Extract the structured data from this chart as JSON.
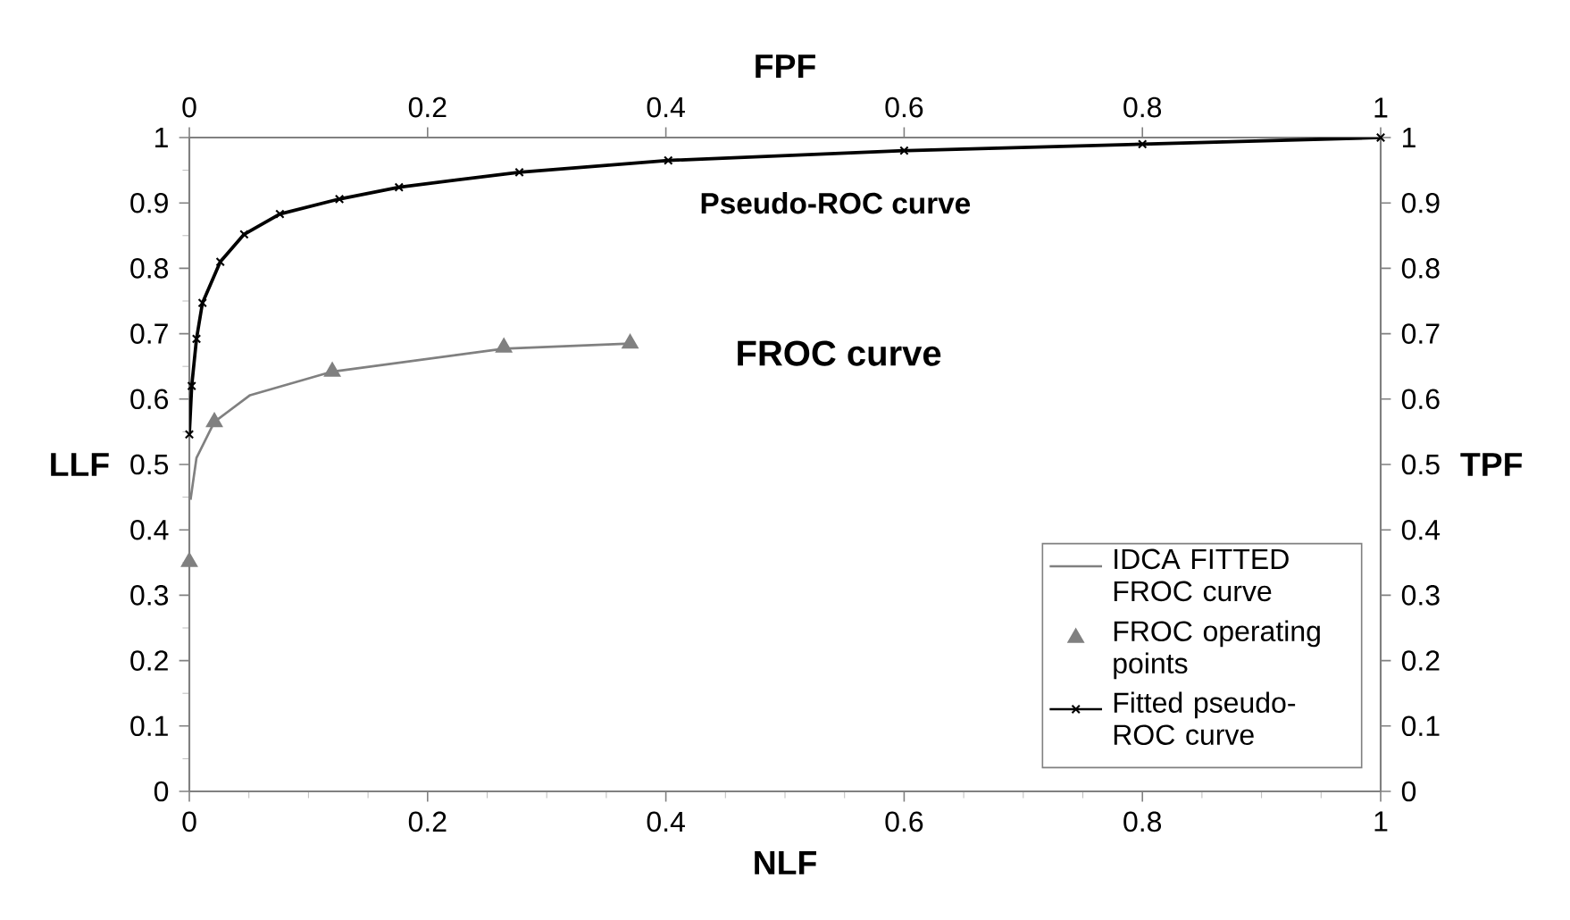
{
  "chart_data": {
    "type": "line",
    "xlabel": "NLF",
    "ylabel": "LLF",
    "x2label": "FPF",
    "y2label": "TPF",
    "xlim": [
      0,
      1
    ],
    "xticks": [
      0,
      0.2,
      0.4,
      0.6,
      0.8,
      1
    ],
    "ylim": [
      0,
      1
    ],
    "yticks": [
      0,
      0.1,
      0.2,
      0.3,
      0.4,
      0.5,
      0.6,
      0.7,
      0.8,
      0.9,
      1
    ],
    "x2lim": [
      0,
      1
    ],
    "x2ticks": [
      0,
      0.2,
      0.4,
      0.6,
      0.8,
      1
    ],
    "y2lim": [
      0,
      1
    ],
    "y2ticks": [
      0,
      0.1,
      0.2,
      0.3,
      0.4,
      0.5,
      0.6,
      0.7,
      0.8,
      0.9,
      1
    ],
    "legend": "bottom right",
    "annotations": [
      "Pseudo-ROC curve",
      "FROC curve"
    ],
    "series": [
      {
        "name": "IDCA FITTED FROC curve",
        "color": "#808080",
        "marker": "none",
        "x": [
          0.001,
          0.006,
          0.021,
          0.051,
          0.12,
          0.264,
          0.37
        ],
        "values": [
          0.446,
          0.51,
          0.565,
          0.606,
          0.642,
          0.677,
          0.685
        ]
      },
      {
        "name": "FROC operating points",
        "type": "scatter",
        "color": "#808080",
        "marker": "triangle",
        "x": [
          0,
          0.021,
          0.12,
          0.264,
          0.37
        ],
        "values": [
          0.351,
          0.565,
          0.642,
          0.679,
          0.685
        ]
      },
      {
        "name": "Fitted pseudo-ROC curve",
        "color": "#000000",
        "marker": "cross",
        "x": [
          0,
          0.002,
          0.006,
          0.011,
          0.026,
          0.046,
          0.076,
          0.126,
          0.176,
          0.277,
          0.402,
          0.6,
          0.8,
          1
        ],
        "values": [
          0.546,
          0.62,
          0.692,
          0.747,
          0.81,
          0.852,
          0.883,
          0.906,
          0.924,
          0.947,
          0.965,
          0.98,
          0.99,
          1
        ]
      }
    ]
  }
}
